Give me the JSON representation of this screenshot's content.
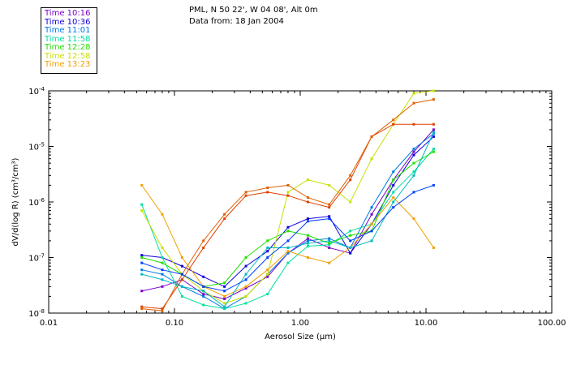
{
  "header": {
    "location": "PML, N 50 22', W 04 08', Alt 0m",
    "date_line": "Data from: 18 Jan 2004"
  },
  "chart_data": {
    "type": "line",
    "title": "",
    "xlabel": "Aerosol Size (μm)",
    "ylabel": "dV/d(log R) (cm³/cm³)",
    "x_scale": "log",
    "y_scale": "log",
    "xlim": [
      0.01,
      100
    ],
    "ylim": [
      1e-08,
      0.0001
    ],
    "x_tick_labels": [
      "0.01",
      "0.10",
      "1.00",
      "10.00",
      "100.00"
    ],
    "y_tick_labels": [
      {
        "mant": "10",
        "exp": "-4"
      },
      {
        "mant": "10",
        "exp": "-5"
      },
      {
        "mant": "10",
        "exp": "-6"
      },
      {
        "mant": "10",
        "exp": "-7"
      },
      {
        "mant": "10",
        "exp": "-8"
      }
    ],
    "legend_position": "top-left, outside plot",
    "x": [
      0.055,
      0.08,
      0.115,
      0.17,
      0.25,
      0.37,
      0.55,
      0.8,
      1.15,
      1.7,
      2.5,
      3.7,
      5.5,
      8.0,
      11.5
    ],
    "series": [
      {
        "name": "Time 10:16",
        "color": "#7a00c8",
        "values": [
          2.5e-08,
          3e-08,
          4e-08,
          2.2e-08,
          1.8e-08,
          2.8e-08,
          4.5e-08,
          1.2e-07,
          2.2e-07,
          1.5e-07,
          1.2e-07,
          6e-07,
          2.5e-06,
          8e-06,
          2e-05
        ]
      },
      {
        "name": "Time 10:36",
        "color": "#1000e0",
        "values": [
          1.1e-07,
          1e-07,
          7e-08,
          4.5e-08,
          3e-08,
          7e-08,
          1.3e-07,
          3.5e-07,
          5e-07,
          5.5e-07,
          1.2e-07,
          4e-07,
          2e-06,
          7e-06,
          1.5e-05
        ]
      },
      {
        "name": "Time 11:01",
        "color": "#0078e8",
        "values": [
          6e-08,
          5e-08,
          3e-08,
          2e-08,
          1.2e-08,
          2e-08,
          5e-08,
          1.2e-07,
          2e-07,
          2.2e-07,
          1.5e-07,
          8e-07,
          3.5e-06,
          9e-06,
          1.7e-05
        ]
      },
      {
        "name": "Time 11:58",
        "color": "#00e0a0",
        "values": [
          9e-07,
          1e-07,
          2e-08,
          1.4e-08,
          1.2e-08,
          1.5e-08,
          2.2e-08,
          8e-08,
          1.6e-07,
          1.7e-07,
          3e-07,
          4e-07,
          1.5e-06,
          3.5e-06,
          9e-06
        ]
      },
      {
        "name": "Time 12:28",
        "color": "#20e000",
        "values": [
          1e-07,
          8e-08,
          5e-08,
          3e-08,
          3.5e-08,
          1e-07,
          2e-07,
          3e-07,
          2.5e-07,
          1.8e-07,
          2.5e-07,
          3e-07,
          2.5e-06,
          5e-06,
          8e-06
        ]
      },
      {
        "name": "Time 12:58",
        "color": "#c8e000",
        "values": [
          7e-07,
          1.5e-07,
          5e-08,
          2.5e-08,
          1.5e-08,
          2e-08,
          5e-08,
          1.5e-06,
          2.5e-06,
          2e-06,
          1e-06,
          6e-06,
          2.5e-05,
          9e-05,
          0.00012
        ]
      },
      {
        "name": "Time 13:23",
        "color": "#f0a000",
        "values": [
          2e-06,
          6e-07,
          1e-07,
          3e-08,
          2e-08,
          3e-08,
          6e-08,
          1.3e-07,
          1e-07,
          8e-08,
          1.5e-07,
          4e-07,
          1.2e-06,
          5e-07,
          1.5e-07
        ]
      },
      {
        "name": "",
        "color": "#e04000",
        "values": [
          1.3e-08,
          1.2e-08,
          4e-08,
          1.5e-07,
          5e-07,
          1.3e-06,
          1.5e-06,
          1.3e-06,
          1e-06,
          8e-07,
          2.5e-06,
          1.5e-05,
          2.5e-05,
          2.5e-05,
          2.5e-05
        ]
      },
      {
        "name": "",
        "color": "#e06000",
        "values": [
          1.2e-08,
          1.1e-08,
          5e-08,
          2e-07,
          6e-07,
          1.5e-06,
          1.8e-06,
          2e-06,
          1.2e-06,
          9e-07,
          3e-06,
          1.5e-05,
          3e-05,
          6e-05,
          7e-05
        ]
      },
      {
        "name": "",
        "color": "#00b8c0",
        "values": [
          5e-08,
          4e-08,
          3e-08,
          2.5e-08,
          1.3e-08,
          5e-08,
          1.5e-07,
          1.5e-07,
          1.8e-07,
          2e-07,
          1.5e-07,
          2e-07,
          1e-06,
          3e-06,
          1.8e-05
        ]
      },
      {
        "name": "",
        "color": "#0040ff",
        "values": [
          8e-08,
          6e-08,
          5e-08,
          3e-08,
          2.5e-08,
          4e-08,
          1e-07,
          2e-07,
          4.5e-07,
          5e-07,
          2e-07,
          3e-07,
          8e-07,
          1.5e-06,
          2e-06
        ]
      }
    ]
  }
}
